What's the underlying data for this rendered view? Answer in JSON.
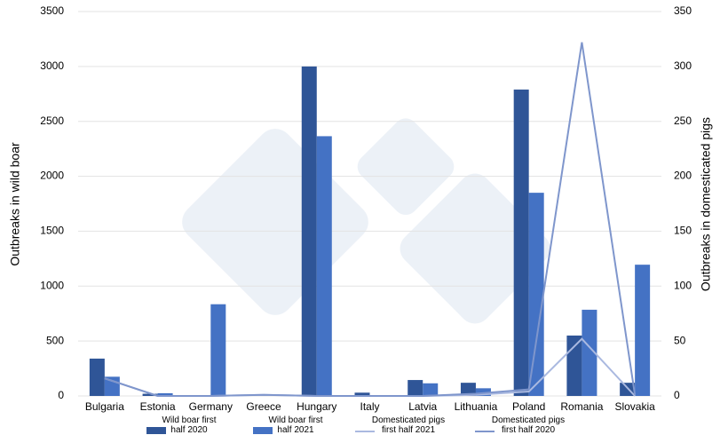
{
  "chart_data": {
    "type": "bar",
    "categories": [
      "Bulgaria",
      "Estonia",
      "Germany",
      "Greece",
      "Hungary",
      "Italy",
      "Latvia",
      "Lithuania",
      "Poland",
      "Romania",
      "Slovakia"
    ],
    "y_label": "Outbreaks in wild boar",
    "y2_label": "Outbreaks in domesticated pigs",
    "ylim": [
      0,
      3500
    ],
    "yticks": [
      0,
      500,
      1000,
      1500,
      2000,
      2500,
      3000,
      3500
    ],
    "y2lim": [
      0,
      350
    ],
    "y2ticks": [
      0,
      50,
      100,
      150,
      200,
      250,
      300,
      350
    ],
    "grid": true,
    "series": [
      {
        "name": "Wild boar first half 2020",
        "color": "#2f5597",
        "values": [
          340,
          20,
          0,
          0,
          3000,
          30,
          145,
          120,
          2790,
          550,
          120
        ]
      },
      {
        "name": "Wild boar first half 2021",
        "color": "#4472c4",
        "values": [
          175,
          25,
          835,
          0,
          2365,
          0,
          115,
          70,
          1850,
          785,
          1195
        ]
      },
      {
        "name": "Domesticated pigs first half 2021",
        "color": "#aab9e0",
        "type": "line",
        "axis": "y2",
        "values": [
          16,
          0,
          0,
          1,
          0,
          0,
          0,
          1,
          4,
          52,
          0
        ]
      },
      {
        "name": "Domesticated pigs first half 2020",
        "color": "#7f96cc",
        "type": "line",
        "axis": "y2",
        "values": [
          16,
          0,
          0,
          1,
          0,
          0,
          0,
          2,
          6,
          322,
          1
        ]
      }
    ]
  }
}
